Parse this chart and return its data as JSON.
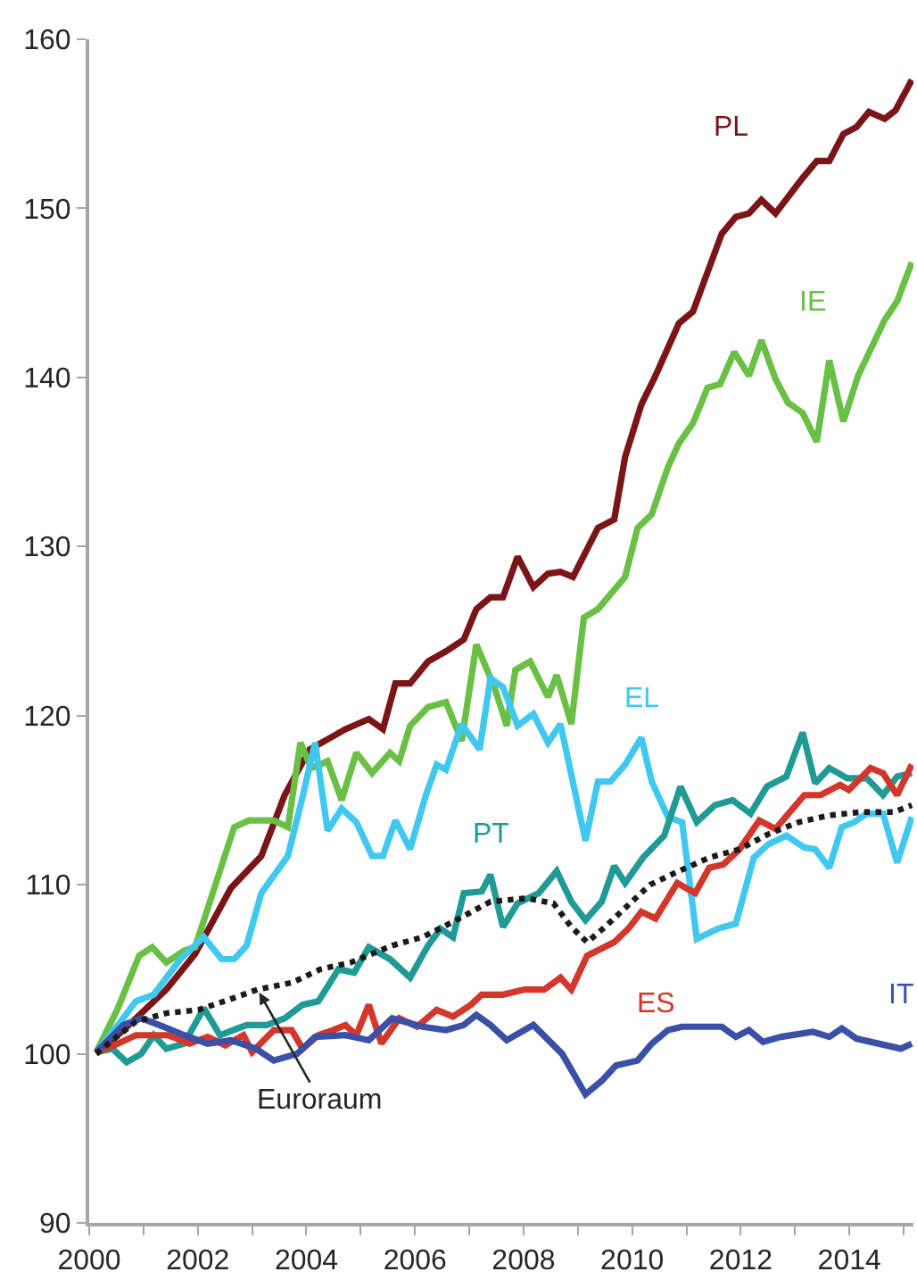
{
  "chart_data": {
    "type": "line",
    "legend": false,
    "marker": "none",
    "xlim": [
      2000,
      2015.18
    ],
    "xticks": [
      2000,
      {
        "value": 2001,
        "label": null
      },
      2002,
      {
        "value": 2003,
        "label": null
      },
      2004,
      {
        "value": 2005,
        "label": null
      },
      2006,
      {
        "value": 2007,
        "label": null
      },
      2008,
      {
        "value": 2009,
        "label": null
      },
      2010,
      {
        "value": 2011,
        "label": null
      },
      2012,
      {
        "value": 2013,
        "label": null
      },
      2014,
      {
        "value": 2015,
        "label": null
      }
    ],
    "ylim": [
      90,
      160
    ],
    "yticks": [
      90,
      100,
      110,
      120,
      130,
      140,
      150,
      160
    ],
    "series": [
      {
        "name": "PL",
        "color": "#7b1416",
        "line_style": "solid",
        "x": [
          2000.13,
          2000.63,
          2000.96,
          2001.42,
          2001.95,
          2002.61,
          2003.17,
          2003.6,
          2004.06,
          2004.72,
          2005.15,
          2005.41,
          2005.64,
          2005.91,
          2006.24,
          2006.57,
          2006.9,
          2007.13,
          2007.39,
          2007.62,
          2007.89,
          2008.18,
          2008.45,
          2008.68,
          2008.91,
          2009.37,
          2009.67,
          2009.87,
          2010.17,
          2010.43,
          2010.86,
          2011.12,
          2011.65,
          2011.91,
          2012.15,
          2012.38,
          2012.64,
          2013.14,
          2013.4,
          2013.63,
          2013.89,
          2014.13,
          2014.36,
          2014.65,
          2014.85,
          2015.15
        ],
        "values": [
          100.0,
          101.4,
          102.4,
          103.8,
          105.9,
          109.8,
          111.7,
          115.3,
          118.0,
          119.2,
          119.8,
          119.2,
          121.9,
          121.9,
          123.2,
          123.8,
          124.5,
          126.3,
          127.0,
          127.0,
          129.4,
          127.6,
          128.4,
          128.5,
          128.2,
          131.1,
          131.6,
          135.3,
          138.4,
          140.1,
          143.2,
          143.9,
          148.5,
          149.5,
          149.7,
          150.5,
          149.7,
          151.8,
          152.8,
          152.8,
          154.4,
          154.8,
          155.7,
          155.3,
          155.8,
          157.6
        ]
      },
      {
        "name": "IE",
        "color": "#6abf45",
        "line_style": "solid",
        "x": [
          2000.13,
          2000.53,
          2000.92,
          2001.16,
          2001.42,
          2001.75,
          2001.95,
          2002.67,
          2002.94,
          2003.4,
          2003.66,
          2003.89,
          2004.09,
          2004.39,
          2004.65,
          2004.92,
          2005.21,
          2005.54,
          2005.71,
          2005.91,
          2006.24,
          2006.57,
          2006.86,
          2007.13,
          2007.46,
          2007.69,
          2007.85,
          2008.12,
          2008.45,
          2008.61,
          2008.88,
          2009.11,
          2009.37,
          2009.87,
          2010.1,
          2010.36,
          2010.66,
          2010.86,
          2011.12,
          2011.39,
          2011.62,
          2011.88,
          2012.15,
          2012.38,
          2012.64,
          2012.87,
          2013.14,
          2013.4,
          2013.63,
          2013.89,
          2014.16,
          2014.65,
          2014.88,
          2015.15
        ],
        "values": [
          100.1,
          102.7,
          105.8,
          106.3,
          105.4,
          106.1,
          106.3,
          113.4,
          113.8,
          113.8,
          113.4,
          118.4,
          116.9,
          117.3,
          115.0,
          117.8,
          116.6,
          117.8,
          117.3,
          119.4,
          120.5,
          120.8,
          118.5,
          124.2,
          121.7,
          119.4,
          122.7,
          123.2,
          121.1,
          122.4,
          119.5,
          125.8,
          126.3,
          128.2,
          131.1,
          131.9,
          134.7,
          136.1,
          137.3,
          139.4,
          139.6,
          141.5,
          140.1,
          142.2,
          139.9,
          138.5,
          137.9,
          136.2,
          141.0,
          137.4,
          140.1,
          143.4,
          144.5,
          146.8
        ]
      },
      {
        "name": "EL",
        "color": "#41c8f0",
        "line_style": "solid",
        "x": [
          2000.13,
          2000.53,
          2000.86,
          2001.19,
          2001.68,
          2002.11,
          2002.44,
          2002.67,
          2002.9,
          2003.17,
          2003.66,
          2003.93,
          2004.16,
          2004.39,
          2004.65,
          2004.92,
          2005.21,
          2005.41,
          2005.64,
          2005.91,
          2006.2,
          2006.4,
          2006.57,
          2006.86,
          2007.19,
          2007.39,
          2007.62,
          2007.89,
          2008.18,
          2008.45,
          2008.68,
          2009.14,
          2009.37,
          2009.6,
          2009.87,
          2010.17,
          2010.36,
          2010.66,
          2010.92,
          2011.19,
          2011.58,
          2011.91,
          2012.24,
          2012.51,
          2012.84,
          2013.17,
          2013.37,
          2013.63,
          2013.86,
          2014.09,
          2014.32,
          2014.62,
          2014.88,
          2015.15
        ],
        "values": [
          100.1,
          101.7,
          103.1,
          103.5,
          105.6,
          106.9,
          105.6,
          105.6,
          106.4,
          109.5,
          111.7,
          115.2,
          118.4,
          113.2,
          114.5,
          113.7,
          111.7,
          111.7,
          113.8,
          112.1,
          115.3,
          117.1,
          116.8,
          119.5,
          118.0,
          122.2,
          121.7,
          119.4,
          120.1,
          118.4,
          119.5,
          112.6,
          116.1,
          116.1,
          117.1,
          118.7,
          116.1,
          114.0,
          113.7,
          106.8,
          107.4,
          107.7,
          111.6,
          112.4,
          112.9,
          112.2,
          112.1,
          111.0,
          113.4,
          113.7,
          114.2,
          114.2,
          111.3,
          114.0
        ]
      },
      {
        "name": "PT",
        "color": "#209a94",
        "line_style": "solid",
        "x": [
          2000.13,
          2000.43,
          2000.69,
          2000.96,
          2001.19,
          2001.42,
          2001.75,
          2002.11,
          2002.41,
          2002.9,
          2003.27,
          2003.6,
          2003.93,
          2004.22,
          2004.59,
          2004.88,
          2005.15,
          2005.54,
          2005.91,
          2006.24,
          2006.47,
          2006.7,
          2006.9,
          2007.23,
          2007.39,
          2007.62,
          2007.89,
          2008.28,
          2008.61,
          2008.88,
          2009.14,
          2009.44,
          2009.67,
          2009.87,
          2010.2,
          2010.59,
          2010.89,
          2011.19,
          2011.52,
          2011.85,
          2012.18,
          2012.48,
          2012.84,
          2013.14,
          2013.37,
          2013.63,
          2013.96,
          2014.32,
          2014.62,
          2014.88,
          2015.15
        ],
        "values": [
          100.1,
          100.3,
          99.5,
          100.0,
          101.1,
          100.3,
          100.6,
          102.7,
          101.1,
          101.7,
          101.7,
          102.1,
          102.9,
          103.1,
          105.0,
          104.8,
          106.3,
          105.6,
          104.5,
          106.4,
          107.4,
          106.9,
          109.5,
          109.6,
          110.6,
          107.5,
          108.9,
          109.5,
          110.8,
          109.0,
          107.9,
          109.0,
          111.1,
          110.1,
          111.6,
          112.9,
          115.8,
          113.7,
          114.7,
          115.0,
          114.2,
          115.8,
          116.4,
          119.0,
          116.0,
          116.9,
          116.3,
          116.3,
          115.3,
          116.4,
          116.6
        ]
      },
      {
        "name": "ES",
        "color": "#d3362a",
        "line_style": "solid",
        "x": [
          2000.13,
          2000.53,
          2000.86,
          2001.12,
          2001.45,
          2001.85,
          2002.18,
          2002.51,
          2002.84,
          2003.0,
          2003.4,
          2003.73,
          2003.93,
          2004.22,
          2004.49,
          2004.72,
          2004.92,
          2005.15,
          2005.38,
          2005.71,
          2006.04,
          2006.4,
          2006.7,
          2007.03,
          2007.23,
          2007.62,
          2008.02,
          2008.38,
          2008.68,
          2008.88,
          2009.17,
          2009.67,
          2009.93,
          2010.17,
          2010.43,
          2010.83,
          2011.16,
          2011.42,
          2011.68,
          2011.98,
          2012.34,
          2012.64,
          2013.17,
          2013.47,
          2013.83,
          2013.99,
          2014.39,
          2014.62,
          2014.88,
          2015.15
        ],
        "values": [
          100.1,
          100.6,
          101.1,
          101.1,
          101.1,
          100.6,
          101.0,
          100.5,
          101.1,
          100.1,
          101.4,
          101.4,
          100.3,
          101.1,
          101.4,
          101.7,
          101.1,
          102.9,
          100.6,
          102.1,
          101.6,
          102.6,
          102.2,
          102.9,
          103.5,
          103.5,
          103.8,
          103.8,
          104.5,
          103.8,
          105.8,
          106.6,
          107.4,
          108.4,
          108.0,
          110.1,
          109.5,
          111.0,
          111.2,
          112.1,
          113.8,
          113.3,
          115.3,
          115.3,
          115.9,
          115.6,
          116.9,
          116.6,
          115.3,
          117.1
        ]
      },
      {
        "name": "IT",
        "color": "#3a4fa6",
        "line_style": "solid",
        "x": [
          2000.13,
          2000.63,
          2000.96,
          2001.29,
          2001.75,
          2002.18,
          2002.61,
          2003.07,
          2003.4,
          2003.83,
          2004.16,
          2004.72,
          2005.15,
          2005.58,
          2006.14,
          2006.57,
          2006.9,
          2007.13,
          2007.39,
          2007.69,
          2008.18,
          2008.71,
          2009.14,
          2009.44,
          2009.7,
          2010.1,
          2010.36,
          2010.66,
          2010.92,
          2011.65,
          2011.91,
          2012.15,
          2012.41,
          2012.74,
          2013.33,
          2013.63,
          2013.86,
          2014.13,
          2014.95,
          2015.15
        ],
        "values": [
          100.1,
          101.7,
          102.1,
          101.7,
          101.1,
          100.6,
          100.8,
          100.3,
          99.6,
          100.0,
          101.0,
          101.1,
          100.8,
          102.1,
          101.6,
          101.4,
          101.7,
          102.3,
          101.7,
          100.8,
          101.7,
          100.0,
          97.6,
          98.4,
          99.3,
          99.6,
          100.6,
          101.4,
          101.6,
          101.6,
          101.0,
          101.4,
          100.7,
          101.0,
          101.3,
          101.0,
          101.5,
          100.9,
          100.3,
          100.6
        ]
      },
      {
        "name": "Euroraum",
        "color": "#1a1a1a",
        "line_style": "dotted",
        "x": [
          2000.13,
          2000.43,
          2000.86,
          2001.42,
          2002.01,
          2002.57,
          2003.1,
          2003.73,
          2004.26,
          2004.82,
          2005.58,
          2006.14,
          2006.7,
          2007.39,
          2008.05,
          2008.55,
          2008.88,
          2009.17,
          2009.5,
          2009.83,
          2010.33,
          2010.86,
          2011.42,
          2011.98,
          2012.51,
          2013.07,
          2013.63,
          2014.22,
          2014.82,
          2015.15
        ],
        "values": [
          100.0,
          100.8,
          101.9,
          102.4,
          102.6,
          103.2,
          103.8,
          104.2,
          105.0,
          105.4,
          106.4,
          106.9,
          107.8,
          109.0,
          109.2,
          108.9,
          107.5,
          106.6,
          107.5,
          108.5,
          110.0,
          110.8,
          111.6,
          112.1,
          113.0,
          113.7,
          114.1,
          114.3,
          114.3,
          114.7
        ]
      }
    ]
  }
}
